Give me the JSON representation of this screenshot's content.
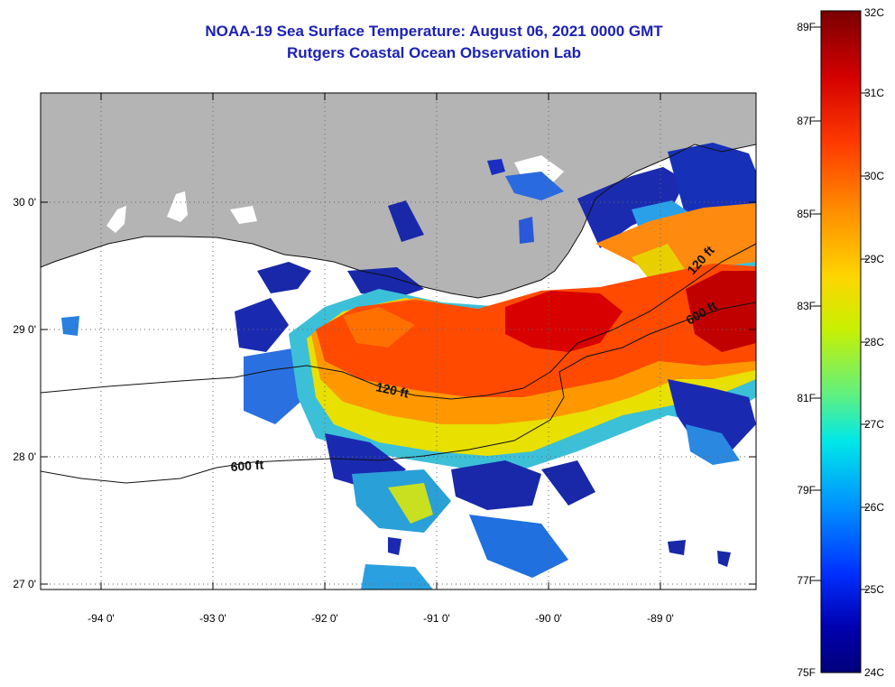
{
  "header": {
    "title": "NOAA-19 Sea Surface Temperature:  August 06, 2021 0000 GMT",
    "subtitle": "Rutgers Coastal Ocean Observation Lab"
  },
  "map": {
    "lon_labels": [
      "-94 0'",
      "-93 0'",
      "-92 0'",
      "-91 0'",
      "-90 0'",
      "-89 0'"
    ],
    "lat_labels": [
      "30 0'",
      "29 0'",
      "28 0'",
      "27 0'"
    ],
    "contour_labels": [
      "120 ft",
      "600 ft",
      "120 ft",
      "600 ft"
    ],
    "colors": {
      "land": "#b4b4b4",
      "ocean_nodata": "#ffffff",
      "frame": "#000000"
    }
  },
  "colorbar": {
    "celsius_labels": [
      "32C",
      "31C",
      "30C",
      "29C",
      "28C",
      "27C",
      "26C",
      "25C",
      "24C"
    ],
    "fahrenheit_labels": [
      "89F",
      "87F",
      "85F",
      "83F",
      "81F",
      "79F",
      "77F",
      "75F"
    ],
    "gradient_stops": [
      "#7a0000",
      "#d40000",
      "#ff3a00",
      "#ff8c00",
      "#ffd400",
      "#c8f000",
      "#60f080",
      "#00e8e8",
      "#0090ff",
      "#0030ff",
      "#0000b0",
      "#00007a"
    ]
  }
}
